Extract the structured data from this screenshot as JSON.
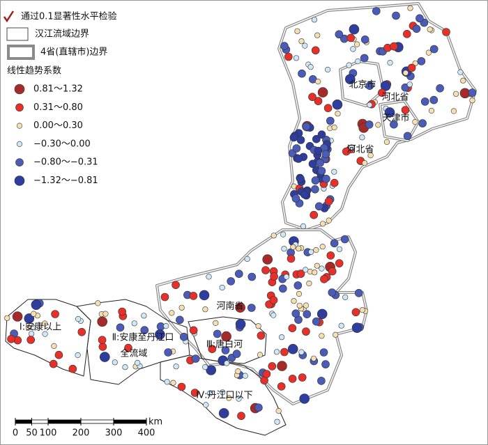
{
  "legend": {
    "significance": "通过0.1显著性水平检验",
    "basin_boundary": "汉江流域边界",
    "province_boundary": "4省(直辖市)边界",
    "title": "线性趋势系数",
    "classes": [
      "0.81～1.32",
      "0.31～0.80",
      "0.00～0.30",
      "−0.30～0.00",
      "−0.80～−0.31",
      "−1.32～−0.81"
    ]
  },
  "regions": [
    "北京市",
    "河北省",
    "天津市",
    "河北省",
    "河南省",
    "Ⅰ:安康以上",
    "Ⅱ:安康至丹江口",
    "全流域",
    "Ⅲ:唐白河",
    "Ⅳ:丹江口以下"
  ],
  "scale_bar": {
    "ticks": [
      0,
      50,
      100,
      200,
      300,
      400
    ],
    "unit": "km"
  }
}
